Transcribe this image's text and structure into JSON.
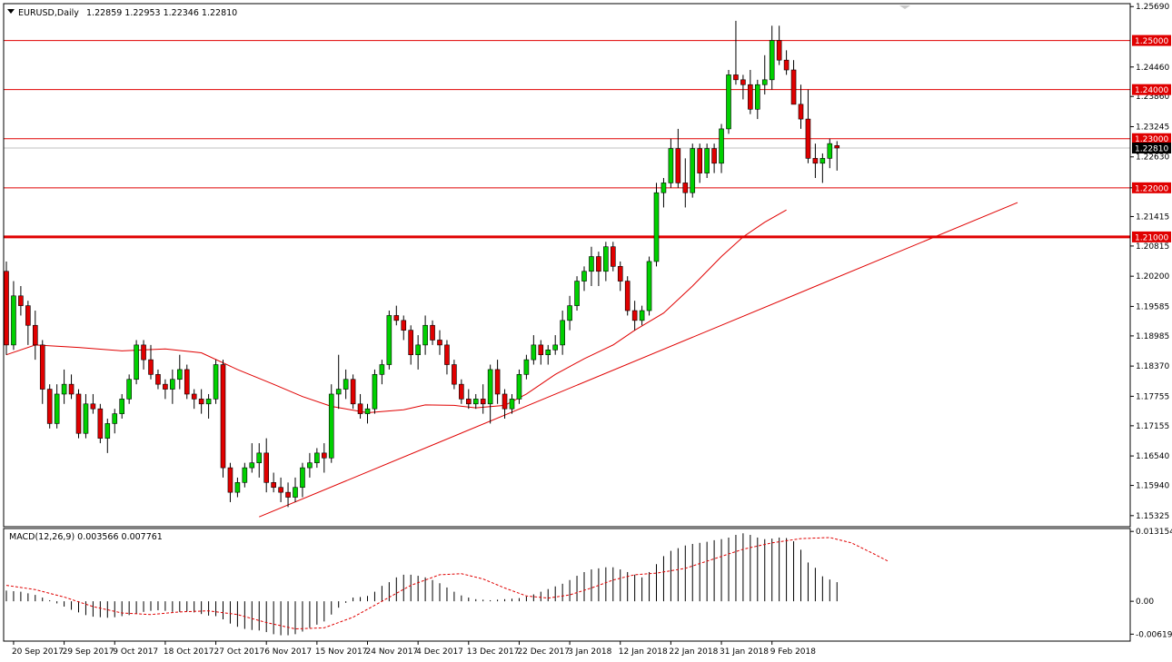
{
  "header": {
    "symbol": "EURUSD,Daily",
    "ohlc": "1.22859 1.22953 1.22346 1.22810"
  },
  "macd_header": "MACD(12,26,9) 0.003566 0.007761",
  "colors": {
    "bull": "#00d000",
    "bear": "#e00000",
    "level_line": "#e00000",
    "ma_line": "#e00000",
    "trend_line": "#e00000",
    "price_tag_bg": "#e00000",
    "current_tag_bg": "#000000",
    "current_line": "#c0c0c0"
  },
  "chart_data": {
    "type": "candlestick",
    "symbol": "EURUSD",
    "timeframe": "Daily",
    "ylim": [
      1.151,
      1.2575
    ],
    "price_ticks": [
      "1.25690",
      "1.24460",
      "1.23860",
      "1.23245",
      "1.22630",
      "1.22000",
      "1.21415",
      "1.20815",
      "1.20200",
      "1.19585",
      "1.18985",
      "1.18370",
      "1.17755",
      "1.17155",
      "1.16540",
      "1.15940",
      "1.15325"
    ],
    "x_labels": [
      {
        "i": 1,
        "label": "20 Sep 2017"
      },
      {
        "i": 8,
        "label": "29 Sep 2017"
      },
      {
        "i": 15,
        "label": "9 Oct 2017"
      },
      {
        "i": 22,
        "label": "18 Oct 2017"
      },
      {
        "i": 29,
        "label": "27 Oct 2017"
      },
      {
        "i": 36,
        "label": "6 Nov 2017"
      },
      {
        "i": 43,
        "label": "15 Nov 2017"
      },
      {
        "i": 50,
        "label": "24 Nov 2017"
      },
      {
        "i": 57,
        "label": "4 Dec 2017"
      },
      {
        "i": 64,
        "label": "13 Dec 2017"
      },
      {
        "i": 71,
        "label": "22 Dec 2017"
      },
      {
        "i": 78,
        "label": "3 Jan 2018"
      },
      {
        "i": 85,
        "label": "12 Jan 2018"
      },
      {
        "i": 92,
        "label": "22 Jan 2018"
      },
      {
        "i": 99,
        "label": "31 Jan 2018"
      },
      {
        "i": 106,
        "label": "9 Feb 2018"
      }
    ],
    "levels": [
      {
        "label": "1.25000",
        "value": 1.25,
        "thick": false
      },
      {
        "label": "1.24000",
        "value": 1.24,
        "thick": false
      },
      {
        "label": "1.23000",
        "value": 1.23,
        "thick": false
      },
      {
        "label": "1.22000",
        "value": 1.22,
        "thick": false
      },
      {
        "label": "1.21000",
        "value": 1.21,
        "thick": true
      }
    ],
    "current_price": {
      "label": "1.22810",
      "value": 1.2281
    },
    "trendline": {
      "from": {
        "i": 35,
        "value": 1.153
      },
      "to": {
        "i": 140,
        "value": 1.217
      }
    },
    "candles": [
      [
        1.203,
        1.205,
        1.186,
        1.188
      ],
      [
        1.188,
        1.201,
        1.187,
        1.198
      ],
      [
        1.198,
        1.2,
        1.194,
        1.196
      ],
      [
        1.196,
        1.197,
        1.188,
        1.192
      ],
      [
        1.192,
        1.195,
        1.185,
        1.188
      ],
      [
        1.188,
        1.189,
        1.176,
        1.179
      ],
      [
        1.179,
        1.18,
        1.171,
        1.172
      ],
      [
        1.172,
        1.18,
        1.171,
        1.178
      ],
      [
        1.178,
        1.183,
        1.176,
        1.18
      ],
      [
        1.18,
        1.182,
        1.177,
        1.178
      ],
      [
        1.178,
        1.179,
        1.169,
        1.17
      ],
      [
        1.17,
        1.178,
        1.169,
        1.176
      ],
      [
        1.176,
        1.178,
        1.174,
        1.175
      ],
      [
        1.175,
        1.176,
        1.168,
        1.169
      ],
      [
        1.169,
        1.173,
        1.166,
        1.172
      ],
      [
        1.172,
        1.175,
        1.17,
        1.174
      ],
      [
        1.174,
        1.178,
        1.173,
        1.177
      ],
      [
        1.177,
        1.182,
        1.176,
        1.181
      ],
      [
        1.181,
        1.189,
        1.18,
        1.188
      ],
      [
        1.188,
        1.189,
        1.183,
        1.185
      ],
      [
        1.185,
        1.188,
        1.181,
        1.182
      ],
      [
        1.182,
        1.183,
        1.179,
        1.18
      ],
      [
        1.18,
        1.181,
        1.177,
        1.179
      ],
      [
        1.179,
        1.183,
        1.176,
        1.181
      ],
      [
        1.181,
        1.186,
        1.179,
        1.183
      ],
      [
        1.183,
        1.184,
        1.177,
        1.178
      ],
      [
        1.178,
        1.179,
        1.175,
        1.177
      ],
      [
        1.177,
        1.179,
        1.174,
        1.176
      ],
      [
        1.176,
        1.178,
        1.173,
        1.177
      ],
      [
        1.177,
        1.185,
        1.176,
        1.184
      ],
      [
        1.184,
        1.185,
        1.161,
        1.163
      ],
      [
        1.163,
        1.164,
        1.156,
        1.158
      ],
      [
        1.158,
        1.161,
        1.157,
        1.16
      ],
      [
        1.16,
        1.164,
        1.159,
        1.163
      ],
      [
        1.163,
        1.168,
        1.162,
        1.164
      ],
      [
        1.164,
        1.168,
        1.161,
        1.166
      ],
      [
        1.166,
        1.169,
        1.158,
        1.16
      ],
      [
        1.16,
        1.162,
        1.158,
        1.159
      ],
      [
        1.159,
        1.161,
        1.156,
        1.158
      ],
      [
        1.158,
        1.16,
        1.155,
        1.157
      ],
      [
        1.157,
        1.161,
        1.156,
        1.159
      ],
      [
        1.159,
        1.164,
        1.157,
        1.163
      ],
      [
        1.163,
        1.166,
        1.161,
        1.164
      ],
      [
        1.164,
        1.167,
        1.163,
        1.166
      ],
      [
        1.166,
        1.168,
        1.162,
        1.165
      ],
      [
        1.165,
        1.18,
        1.164,
        1.178
      ],
      [
        1.178,
        1.186,
        1.175,
        1.179
      ],
      [
        1.179,
        1.183,
        1.177,
        1.181
      ],
      [
        1.181,
        1.182,
        1.175,
        1.176
      ],
      [
        1.176,
        1.178,
        1.173,
        1.174
      ],
      [
        1.174,
        1.176,
        1.172,
        1.175
      ],
      [
        1.175,
        1.183,
        1.174,
        1.182
      ],
      [
        1.182,
        1.185,
        1.18,
        1.184
      ],
      [
        1.184,
        1.195,
        1.183,
        1.194
      ],
      [
        1.194,
        1.196,
        1.192,
        1.193
      ],
      [
        1.193,
        1.194,
        1.189,
        1.191
      ],
      [
        1.191,
        1.192,
        1.184,
        1.186
      ],
      [
        1.186,
        1.19,
        1.183,
        1.188
      ],
      [
        1.188,
        1.194,
        1.186,
        1.192
      ],
      [
        1.192,
        1.193,
        1.188,
        1.189
      ],
      [
        1.189,
        1.191,
        1.186,
        1.188
      ],
      [
        1.188,
        1.189,
        1.182,
        1.184
      ],
      [
        1.184,
        1.185,
        1.179,
        1.18
      ],
      [
        1.18,
        1.181,
        1.176,
        1.177
      ],
      [
        1.177,
        1.179,
        1.175,
        1.176
      ],
      [
        1.176,
        1.178,
        1.175,
        1.177
      ],
      [
        1.177,
        1.18,
        1.174,
        1.176
      ],
      [
        1.176,
        1.184,
        1.172,
        1.183
      ],
      [
        1.183,
        1.185,
        1.176,
        1.178
      ],
      [
        1.178,
        1.179,
        1.173,
        1.175
      ],
      [
        1.175,
        1.178,
        1.174,
        1.177
      ],
      [
        1.177,
        1.183,
        1.176,
        1.182
      ],
      [
        1.182,
        1.186,
        1.181,
        1.185
      ],
      [
        1.185,
        1.19,
        1.184,
        1.188
      ],
      [
        1.188,
        1.189,
        1.184,
        1.186
      ],
      [
        1.186,
        1.188,
        1.184,
        1.187
      ],
      [
        1.187,
        1.19,
        1.186,
        1.188
      ],
      [
        1.188,
        1.195,
        1.186,
        1.193
      ],
      [
        1.193,
        1.198,
        1.191,
        1.196
      ],
      [
        1.196,
        1.202,
        1.195,
        1.201
      ],
      [
        1.201,
        1.204,
        1.199,
        1.203
      ],
      [
        1.203,
        1.208,
        1.2,
        1.206
      ],
      [
        1.206,
        1.207,
        1.2,
        1.203
      ],
      [
        1.203,
        1.209,
        1.201,
        1.208
      ],
      [
        1.208,
        1.209,
        1.203,
        1.204
      ],
      [
        1.204,
        1.205,
        1.199,
        1.201
      ],
      [
        1.201,
        1.202,
        1.194,
        1.195
      ],
      [
        1.195,
        1.197,
        1.191,
        1.193
      ],
      [
        1.193,
        1.196,
        1.192,
        1.195
      ],
      [
        1.195,
        1.206,
        1.194,
        1.205
      ],
      [
        1.205,
        1.221,
        1.204,
        1.219
      ],
      [
        1.219,
        1.222,
        1.216,
        1.221
      ],
      [
        1.221,
        1.23,
        1.22,
        1.228
      ],
      [
        1.228,
        1.232,
        1.22,
        1.221
      ],
      [
        1.221,
        1.226,
        1.216,
        1.219
      ],
      [
        1.219,
        1.229,
        1.218,
        1.228
      ],
      [
        1.228,
        1.229,
        1.221,
        1.223
      ],
      [
        1.223,
        1.229,
        1.222,
        1.228
      ],
      [
        1.228,
        1.229,
        1.223,
        1.225
      ],
      [
        1.225,
        1.233,
        1.223,
        1.232
      ],
      [
        1.232,
        1.244,
        1.231,
        1.243
      ],
      [
        1.243,
        1.254,
        1.241,
        1.242
      ],
      [
        1.242,
        1.243,
        1.238,
        1.241
      ],
      [
        1.241,
        1.244,
        1.235,
        1.236
      ],
      [
        1.236,
        1.242,
        1.234,
        1.241
      ],
      [
        1.241,
        1.247,
        1.239,
        1.242
      ],
      [
        1.242,
        1.253,
        1.24,
        1.25
      ],
      [
        1.25,
        1.253,
        1.245,
        1.246
      ],
      [
        1.246,
        1.248,
        1.243,
        1.244
      ],
      [
        1.244,
        1.246,
        1.237,
        1.237
      ],
      [
        1.237,
        1.241,
        1.232,
        1.234
      ],
      [
        1.234,
        1.24,
        1.225,
        1.226
      ],
      [
        1.226,
        1.229,
        1.222,
        1.225
      ],
      [
        1.225,
        1.227,
        1.221,
        1.226
      ],
      [
        1.226,
        1.23,
        1.224,
        1.229
      ],
      [
        1.2286,
        1.2295,
        1.2235,
        1.2281
      ]
    ],
    "ma": [
      {
        "i": 0,
        "value": 1.186
      },
      {
        "i": 4,
        "value": 1.188
      },
      {
        "i": 10,
        "value": 1.1875
      },
      {
        "i": 16,
        "value": 1.1868
      },
      {
        "i": 22,
        "value": 1.1872
      },
      {
        "i": 27,
        "value": 1.1864
      },
      {
        "i": 32,
        "value": 1.183
      },
      {
        "i": 37,
        "value": 1.18
      },
      {
        "i": 41,
        "value": 1.1775
      },
      {
        "i": 45,
        "value": 1.1755
      },
      {
        "i": 50,
        "value": 1.1742
      },
      {
        "i": 55,
        "value": 1.1748
      },
      {
        "i": 58,
        "value": 1.1758
      },
      {
        "i": 62,
        "value": 1.1757
      },
      {
        "i": 65,
        "value": 1.1752
      },
      {
        "i": 69,
        "value": 1.1757
      },
      {
        "i": 72,
        "value": 1.178
      },
      {
        "i": 76,
        "value": 1.182
      },
      {
        "i": 80,
        "value": 1.1852
      },
      {
        "i": 84,
        "value": 1.188
      },
      {
        "i": 87,
        "value": 1.191
      },
      {
        "i": 91,
        "value": 1.1945
      },
      {
        "i": 95,
        "value": 1.2
      },
      {
        "i": 99,
        "value": 1.206
      },
      {
        "i": 102,
        "value": 1.21
      },
      {
        "i": 105,
        "value": 1.213
      },
      {
        "i": 108,
        "value": 1.2155
      }
    ],
    "macd": {
      "ylim": [
        -0.0075,
        0.0137
      ],
      "ticks": [
        "0.013154",
        "0.00",
        "-0.00619"
      ],
      "histogram": [
        0.002,
        0.0019,
        0.0018,
        0.0015,
        0.0012,
        0.0007,
        0.0002,
        -0.0004,
        -0.001,
        -0.0016,
        -0.0021,
        -0.0026,
        -0.0029,
        -0.003,
        -0.0031,
        -0.003,
        -0.0028,
        -0.0026,
        -0.0023,
        -0.002,
        -0.0018,
        -0.0017,
        -0.0018,
        -0.002,
        -0.002,
        -0.0019,
        -0.0021,
        -0.0024,
        -0.0027,
        -0.0028,
        -0.0034,
        -0.0042,
        -0.0048,
        -0.0052,
        -0.0054,
        -0.0055,
        -0.0058,
        -0.0062,
        -0.0064,
        -0.0064,
        -0.0062,
        -0.0057,
        -0.005,
        -0.0044,
        -0.0038,
        -0.0025,
        -0.0012,
        -0.0003,
        0.0007,
        0.0008,
        0.001,
        0.0018,
        0.0029,
        0.0036,
        0.0045,
        0.005,
        0.005,
        0.0048,
        0.0045,
        0.004,
        0.0034,
        0.0026,
        0.0018,
        0.0011,
        0.0007,
        0.0004,
        0.0003,
        0.0002,
        0.0003,
        0.0004,
        0.0005,
        0.0006,
        0.0009,
        0.0013,
        0.0018,
        0.0023,
        0.0028,
        0.0033,
        0.004,
        0.0048,
        0.0055,
        0.006,
        0.0062,
        0.0064,
        0.0064,
        0.006,
        0.0055,
        0.005,
        0.0045,
        0.0055,
        0.007,
        0.0085,
        0.0095,
        0.01,
        0.0105,
        0.0108,
        0.011,
        0.0112,
        0.0115,
        0.0117,
        0.012,
        0.0125,
        0.0128,
        0.0125,
        0.012,
        0.0117,
        0.0118,
        0.012,
        0.0119,
        0.0113,
        0.0097,
        0.0073,
        0.0063,
        0.0047,
        0.0041,
        0.0036
      ],
      "signal": [
        {
          "i": 0,
          "value": 0.003
        },
        {
          "i": 4,
          "value": 0.0022
        },
        {
          "i": 8,
          "value": 0.0008
        },
        {
          "i": 12,
          "value": -0.001
        },
        {
          "i": 16,
          "value": -0.0022
        },
        {
          "i": 20,
          "value": -0.0025
        },
        {
          "i": 24,
          "value": -0.002
        },
        {
          "i": 28,
          "value": -0.0018
        },
        {
          "i": 32,
          "value": -0.0025
        },
        {
          "i": 36,
          "value": -0.004
        },
        {
          "i": 40,
          "value": -0.0052
        },
        {
          "i": 44,
          "value": -0.005
        },
        {
          "i": 48,
          "value": -0.003
        },
        {
          "i": 52,
          "value": 0.0
        },
        {
          "i": 56,
          "value": 0.003
        },
        {
          "i": 60,
          "value": 0.005
        },
        {
          "i": 63,
          "value": 0.0052
        },
        {
          "i": 66,
          "value": 0.0042
        },
        {
          "i": 69,
          "value": 0.0025
        },
        {
          "i": 72,
          "value": 0.001
        },
        {
          "i": 75,
          "value": 0.0006
        },
        {
          "i": 78,
          "value": 0.0012
        },
        {
          "i": 81,
          "value": 0.0025
        },
        {
          "i": 84,
          "value": 0.004
        },
        {
          "i": 87,
          "value": 0.005
        },
        {
          "i": 90,
          "value": 0.0053
        },
        {
          "i": 94,
          "value": 0.0062
        },
        {
          "i": 98,
          "value": 0.008
        },
        {
          "i": 102,
          "value": 0.0098
        },
        {
          "i": 106,
          "value": 0.011
        },
        {
          "i": 110,
          "value": 0.0118
        },
        {
          "i": 114,
          "value": 0.012
        },
        {
          "i": 117,
          "value": 0.011
        },
        {
          "i": 120,
          "value": 0.009
        },
        {
          "i": 122,
          "value": 0.0076
        }
      ]
    }
  }
}
